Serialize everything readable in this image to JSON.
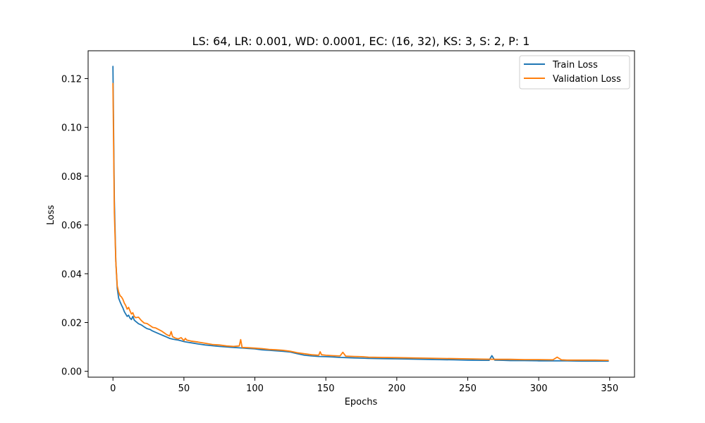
{
  "chart_data": {
    "type": "line",
    "title": "LS: 64, LR: 0.001, WD: 0.0001, EC: (16, 32), KS: 3, S: 2, P: 1",
    "xlabel": "Epochs",
    "ylabel": "Loss",
    "xlim": [
      -17.5,
      367.5
    ],
    "ylim": [
      -0.0024,
      0.1314
    ],
    "xticks": [
      0,
      50,
      100,
      150,
      200,
      250,
      300,
      350
    ],
    "xtick_labels": [
      "0",
      "50",
      "100",
      "150",
      "200",
      "250",
      "300",
      "350"
    ],
    "yticks": [
      0.0,
      0.02,
      0.04,
      0.06,
      0.08,
      0.1,
      0.12
    ],
    "ytick_labels": [
      "0.00",
      "0.02",
      "0.04",
      "0.06",
      "0.08",
      "0.10",
      "0.12"
    ],
    "grid": false,
    "legend_position": "top-right",
    "series": [
      {
        "name": "Train Loss",
        "color": "#1f77b4",
        "x": [
          0,
          1,
          2,
          3,
          4,
          5,
          6,
          7,
          8,
          9,
          10,
          11,
          12,
          13,
          14,
          15,
          16,
          18,
          20,
          22,
          24,
          26,
          28,
          30,
          32,
          34,
          36,
          38,
          40,
          42,
          44,
          46,
          48,
          50,
          52,
          55,
          60,
          65,
          70,
          75,
          80,
          85,
          90,
          95,
          100,
          105,
          110,
          115,
          120,
          125,
          130,
          135,
          140,
          145,
          150,
          155,
          160,
          165,
          170,
          175,
          180,
          190,
          200,
          210,
          220,
          230,
          240,
          250,
          260,
          265,
          267,
          269,
          275,
          280,
          290,
          300,
          310,
          320,
          330,
          340,
          349
        ],
        "y": [
          0.125,
          0.07,
          0.045,
          0.034,
          0.03,
          0.0285,
          0.0272,
          0.026,
          0.0245,
          0.0235,
          0.0225,
          0.023,
          0.0218,
          0.0212,
          0.0225,
          0.021,
          0.0205,
          0.0195,
          0.019,
          0.0182,
          0.0175,
          0.0172,
          0.0165,
          0.016,
          0.0155,
          0.015,
          0.0145,
          0.014,
          0.0135,
          0.0132,
          0.013,
          0.0128,
          0.0125,
          0.0122,
          0.012,
          0.0117,
          0.0112,
          0.0108,
          0.0105,
          0.0102,
          0.01,
          0.0098,
          0.0096,
          0.0094,
          0.0092,
          0.0088,
          0.0086,
          0.0084,
          0.0082,
          0.0079,
          0.0072,
          0.0066,
          0.0063,
          0.0061,
          0.006,
          0.0059,
          0.0057,
          0.0056,
          0.0055,
          0.0054,
          0.0053,
          0.0052,
          0.0051,
          0.005,
          0.0049,
          0.0048,
          0.0047,
          0.0046,
          0.0045,
          0.0045,
          0.0064,
          0.0046,
          0.0045,
          0.0044,
          0.0044,
          0.0043,
          0.0043,
          0.0043,
          0.0042,
          0.0042,
          0.0042
        ]
      },
      {
        "name": "Validation Loss",
        "color": "#ff7f0e",
        "x": [
          0,
          1,
          2,
          3,
          4,
          5,
          6,
          7,
          8,
          9,
          10,
          11,
          12,
          13,
          14,
          15,
          16,
          18,
          20,
          22,
          24,
          26,
          28,
          30,
          32,
          34,
          36,
          38,
          40,
          41,
          42,
          44,
          46,
          48,
          50,
          51,
          52,
          55,
          60,
          65,
          70,
          75,
          80,
          85,
          89,
          90,
          91,
          95,
          100,
          105,
          110,
          115,
          120,
          125,
          130,
          135,
          140,
          145,
          146,
          147,
          150,
          155,
          160,
          162,
          164,
          170,
          175,
          180,
          190,
          200,
          210,
          220,
          230,
          240,
          250,
          260,
          270,
          280,
          290,
          300,
          310,
          313,
          316,
          320,
          330,
          340,
          349
        ],
        "y": [
          0.118,
          0.065,
          0.045,
          0.035,
          0.0325,
          0.031,
          0.0305,
          0.0295,
          0.028,
          0.027,
          0.0255,
          0.0262,
          0.0248,
          0.0235,
          0.024,
          0.0225,
          0.022,
          0.0222,
          0.0208,
          0.0198,
          0.0196,
          0.0188,
          0.018,
          0.0178,
          0.0172,
          0.0166,
          0.0158,
          0.015,
          0.0145,
          0.0163,
          0.0142,
          0.0136,
          0.0133,
          0.0138,
          0.0126,
          0.0135,
          0.0128,
          0.0124,
          0.012,
          0.0115,
          0.011,
          0.0108,
          0.0104,
          0.0102,
          0.0104,
          0.013,
          0.0098,
          0.0097,
          0.0095,
          0.0093,
          0.009,
          0.0088,
          0.0086,
          0.0082,
          0.0076,
          0.0072,
          0.0068,
          0.0066,
          0.008,
          0.0068,
          0.0066,
          0.0064,
          0.0063,
          0.0078,
          0.0062,
          0.0061,
          0.006,
          0.0058,
          0.0057,
          0.0056,
          0.0055,
          0.0054,
          0.0053,
          0.0052,
          0.0051,
          0.005,
          0.0049,
          0.0049,
          0.0048,
          0.0048,
          0.0047,
          0.0058,
          0.0047,
          0.0046,
          0.0046,
          0.0046,
          0.0045
        ]
      }
    ]
  }
}
